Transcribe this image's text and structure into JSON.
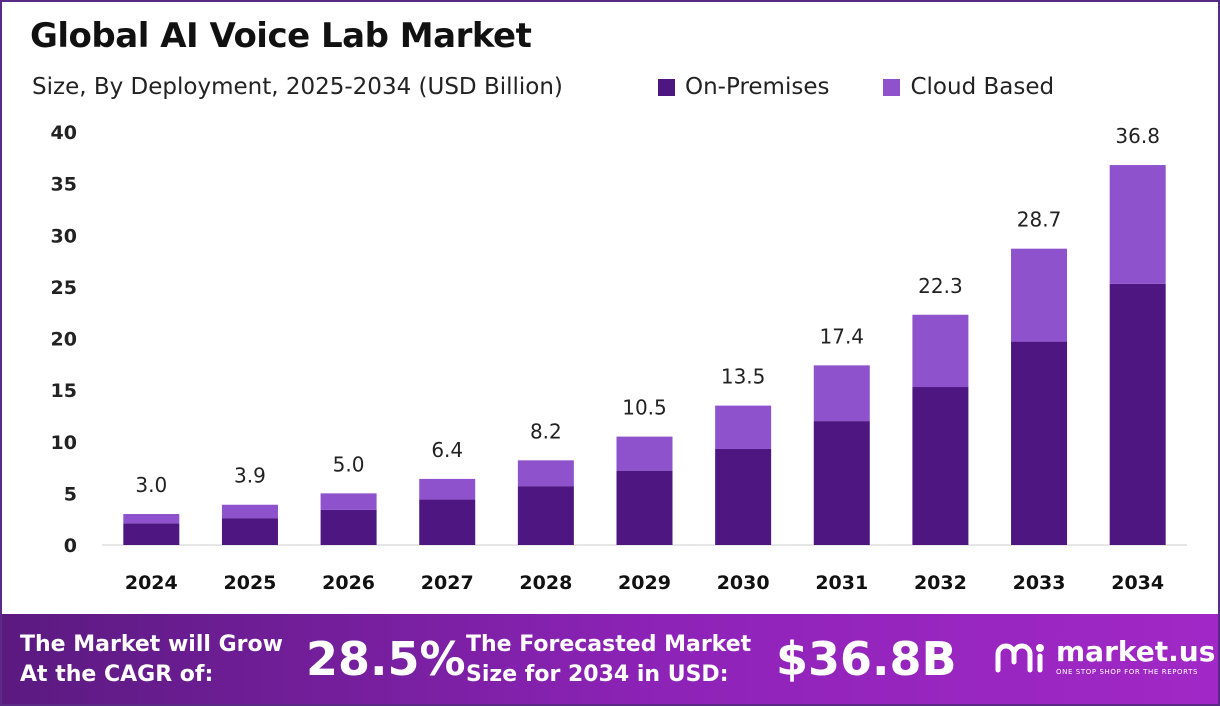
{
  "header": {
    "title": "Global AI Voice Lab Market",
    "subtitle": "Size, By Deployment, 2025-2034 (USD Billion)"
  },
  "legend": [
    {
      "label": "On-Premises",
      "color": "#4e1681"
    },
    {
      "label": "Cloud Based",
      "color": "#8e52cc"
    }
  ],
  "chart_data": {
    "type": "bar",
    "stacked": true,
    "title": "Global AI Voice Lab Market",
    "subtitle": "Size, By Deployment, 2025-2034 (USD Billion)",
    "categories": [
      "2024",
      "2025",
      "2026",
      "2027",
      "2028",
      "2029",
      "2030",
      "2031",
      "2032",
      "2033",
      "2034"
    ],
    "series": [
      {
        "name": "On-Premises",
        "color": "#4e1681",
        "values": [
          2.1,
          2.6,
          3.4,
          4.4,
          5.7,
          7.2,
          9.3,
          12.0,
          15.3,
          19.7,
          25.3
        ]
      },
      {
        "name": "Cloud Based",
        "color": "#8e52cc",
        "values": [
          0.9,
          1.3,
          1.6,
          2.0,
          2.5,
          3.3,
          4.2,
          5.4,
          7.0,
          9.0,
          11.5
        ]
      }
    ],
    "totals": [
      "3.0",
      "3.9",
      "5.0",
      "6.4",
      "8.2",
      "10.5",
      "13.5",
      "17.4",
      "22.3",
      "28.7",
      "36.8"
    ],
    "yticks": [
      "0",
      "5",
      "10",
      "15",
      "20",
      "25",
      "30",
      "35",
      "40"
    ],
    "ylim": [
      0,
      40
    ],
    "grid": false,
    "legend_position": "top-right"
  },
  "footer": {
    "cagr_text_line1": "The Market will Grow",
    "cagr_text_line2": "At the CAGR of:",
    "cagr_value": "28.5%",
    "forecast_text_line1": "The Forecasted Market",
    "forecast_text_line2": "Size for 2034 in USD:",
    "forecast_value": "$36.8B",
    "brand_name": "market.us",
    "brand_tagline": "ONE STOP SHOP FOR THE REPORTS"
  }
}
